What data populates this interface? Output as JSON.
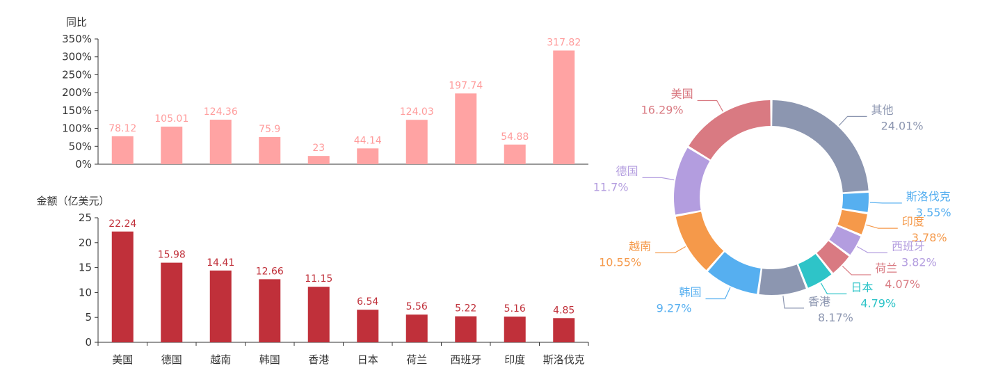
{
  "chart_data": [
    {
      "type": "bar",
      "ylabel": "同比",
      "ylim": [
        0,
        350
      ],
      "yticks": [
        "0%",
        "50%",
        "100%",
        "150%",
        "200%",
        "250%",
        "300%",
        "350%"
      ],
      "categories": [
        "美国",
        "德国",
        "越南",
        "韩国",
        "香港",
        "日本",
        "荷兰",
        "西班牙",
        "印度",
        "斯洛伐克"
      ],
      "values": [
        78.12,
        105.01,
        124.36,
        75.9,
        23,
        44.14,
        124.03,
        197.74,
        54.88,
        317.82
      ],
      "labels": [
        "78.12",
        "105.01",
        "124.36",
        "75.9",
        "23",
        "44.14",
        "124.03",
        "197.74",
        "54.88",
        "317.82"
      ],
      "bar_color": "#ffa3a3",
      "label_color": "#ff9b9b"
    },
    {
      "type": "bar",
      "ylabel": "金额（亿美元）",
      "ylim": [
        0,
        25
      ],
      "yticks": [
        "0",
        "5",
        "10",
        "15",
        "20",
        "25"
      ],
      "categories": [
        "美国",
        "德国",
        "越南",
        "韩国",
        "香港",
        "日本",
        "荷兰",
        "西班牙",
        "印度",
        "斯洛伐克"
      ],
      "values": [
        22.24,
        15.98,
        14.41,
        12.66,
        11.15,
        6.54,
        5.56,
        5.22,
        5.16,
        4.85
      ],
      "labels": [
        "22.24",
        "15.98",
        "14.41",
        "12.66",
        "11.15",
        "6.54",
        "5.56",
        "5.22",
        "5.16",
        "4.85"
      ],
      "bar_color": "#c0303a",
      "label_color": "#c0303a"
    },
    {
      "type": "pie",
      "donut": true,
      "slices": [
        {
          "name": "其他",
          "value": 24.01,
          "label": "24.01%",
          "color": "#8c96b0"
        },
        {
          "name": "斯洛伐克",
          "value": 3.55,
          "label": "3.55%",
          "color": "#56aff0"
        },
        {
          "name": "印度",
          "value": 3.78,
          "label": "3.78%",
          "color": "#f5994a"
        },
        {
          "name": "西班牙",
          "value": 3.82,
          "label": "3.82%",
          "color": "#b39ddf"
        },
        {
          "name": "荷兰",
          "value": 4.07,
          "label": "4.07%",
          "color": "#d97a82"
        },
        {
          "name": "日本",
          "value": 4.79,
          "label": "4.79%",
          "color": "#2ec4c8"
        },
        {
          "name": "香港",
          "value": 8.17,
          "label": "8.17%",
          "color": "#8c96b0"
        },
        {
          "name": "韩国",
          "value": 9.27,
          "label": "9.27%",
          "color": "#56aff0"
        },
        {
          "name": "越南",
          "value": 10.55,
          "label": "10.55%",
          "color": "#f5994a"
        },
        {
          "name": "德国",
          "value": 11.7,
          "label": "11.7%",
          "color": "#b39ddf"
        },
        {
          "name": "美国",
          "value": 16.29,
          "label": "16.29%",
          "color": "#d97a82"
        }
      ]
    }
  ]
}
